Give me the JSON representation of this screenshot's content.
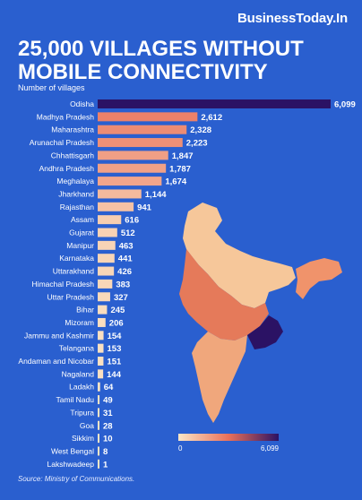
{
  "brand": "BusinessToday.In",
  "source": "Source: Ministry of Communications.",
  "chart_data": {
    "type": "bar",
    "orientation": "horizontal",
    "title": "25,000 VILLAGES WITHOUT MOBILE CONNECTIVITY",
    "subtitle": "Number of villages",
    "categories": [
      "Odisha",
      "Madhya Pradesh",
      "Maharashtra",
      "Arunachal Pradesh",
      "Chhattisgarh",
      "Andhra Pradesh",
      "Meghalaya",
      "Jharkhand",
      "Rajasthan",
      "Assam",
      "Gujarat",
      "Manipur",
      "Karnataka",
      "Uttarakhand",
      "Himachal Pradesh",
      "Uttar Pradesh",
      "Bihar",
      "Mizoram",
      "Jammu and Kashmir",
      "Telangana",
      "Andaman and Nicobar",
      "Nagaland",
      "Ladakh",
      "Tamil Nadu",
      "Tripura",
      "Goa",
      "Sikkim",
      "West Bengal",
      "Lakshwadeep"
    ],
    "values": [
      6099,
      2612,
      2328,
      2223,
      1847,
      1787,
      1674,
      1144,
      941,
      616,
      512,
      463,
      441,
      426,
      383,
      327,
      245,
      206,
      154,
      153,
      151,
      144,
      64,
      49,
      31,
      28,
      10,
      8,
      1
    ],
    "value_labels": [
      "6,099",
      "2,612",
      "2,328",
      "2,223",
      "1,847",
      "1,787",
      "1,674",
      "1,144",
      "941",
      "616",
      "512",
      "463",
      "441",
      "426",
      "383",
      "327",
      "245",
      "206",
      "154",
      "153",
      "151",
      "144",
      "64",
      "49",
      "31",
      "28",
      "10",
      "8",
      "1"
    ],
    "color_scale": {
      "min": 0,
      "max": 6099,
      "min_label": "0",
      "max_label": "6,099",
      "low_color": "#fbe6c6",
      "mid_color": "#e9705a",
      "high_color": "#2b1264"
    },
    "legend": "bottom-right",
    "grid": false
  }
}
